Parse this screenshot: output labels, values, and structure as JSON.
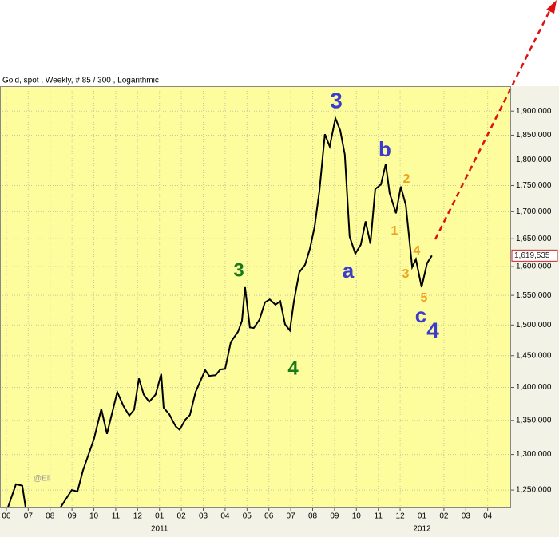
{
  "chart_data": {
    "type": "line",
    "title": "Gold, spot , Weekly, # 85 / 300 , Logarithmic",
    "log_scale": true,
    "grid": true,
    "x": [
      6.0,
      6.44,
      6.73,
      6.91,
      8.34,
      8.99,
      9.25,
      9.5,
      10.01,
      10.34,
      10.6,
      11.07,
      11.36,
      11.62,
      11.84,
      12.06,
      12.28,
      12.53,
      12.82,
      13.08,
      13.19,
      13.45,
      13.74,
      13.92,
      14.18,
      14.39,
      14.65,
      15.09,
      15.27,
      15.56,
      15.78,
      16.0,
      16.26,
      16.59,
      16.77,
      16.91,
      17.13,
      17.31,
      17.57,
      17.82,
      18.04,
      18.3,
      18.52,
      18.74,
      18.96,
      19.14,
      19.39,
      19.65,
      19.87,
      20.09,
      20.31,
      20.56,
      20.78,
      21.04,
      21.26,
      21.47,
      21.69,
      21.95,
      22.2,
      22.42,
      22.64,
      22.86,
      23.12,
      23.34,
      23.52,
      23.81,
      24.03,
      24.26,
      24.55,
      24.72,
      24.98,
      25.23,
      25.45
    ],
    "series": [
      {
        "name": "Gold, spot",
        "color": "#000000",
        "values": [
          1220000,
          1258000,
          1256000,
          1220000,
          1220000,
          1250000,
          1248000,
          1277000,
          1323000,
          1367000,
          1330000,
          1393000,
          1371000,
          1357000,
          1366000,
          1414000,
          1389000,
          1378000,
          1389000,
          1421000,
          1369000,
          1359000,
          1341000,
          1336000,
          1351000,
          1358000,
          1393000,
          1427000,
          1418000,
          1419000,
          1428000,
          1429000,
          1472000,
          1489000,
          1507000,
          1564000,
          1496000,
          1495000,
          1509000,
          1538000,
          1543000,
          1534000,
          1540000,
          1501000,
          1491000,
          1539000,
          1590000,
          1603000,
          1631000,
          1672000,
          1740000,
          1852000,
          1827000,
          1885000,
          1860000,
          1811000,
          1654000,
          1623000,
          1639000,
          1682000,
          1641000,
          1743000,
          1752000,
          1792000,
          1735000,
          1697000,
          1748000,
          1712000,
          1599000,
          1613000,
          1564000,
          1606000,
          1619535
        ]
      }
    ],
    "last_value_label": "1,619,535",
    "xlim": [
      5.71,
      29.07
    ],
    "xticks": [
      {
        "value": 6,
        "label": "06"
      },
      {
        "value": 7,
        "label": "07"
      },
      {
        "value": 8,
        "label": "08"
      },
      {
        "value": 9,
        "label": "09"
      },
      10,
      11,
      12,
      {
        "value": 13,
        "label": "01"
      },
      {
        "value": 14,
        "label": "02"
      },
      {
        "value": 15,
        "label": "03"
      },
      {
        "value": 16,
        "label": "04"
      },
      {
        "value": 17,
        "label": "05"
      },
      {
        "value": 18,
        "label": "06"
      },
      {
        "value": 19,
        "label": "07"
      },
      {
        "value": 20,
        "label": "08"
      },
      {
        "value": 21,
        "label": "09"
      },
      {
        "value": 22,
        "label": "10"
      },
      {
        "value": 23,
        "label": "11"
      },
      {
        "value": 24,
        "label": "12"
      },
      {
        "value": 25,
        "label": "01"
      },
      {
        "value": 26,
        "label": "02"
      },
      {
        "value": 27,
        "label": "03"
      },
      {
        "value": 28,
        "label": "04"
      }
    ],
    "x_year_labels": [
      {
        "value": 13,
        "label": "2011"
      },
      {
        "value": 25,
        "label": "2012"
      }
    ],
    "ylim": [
      1225000,
      1953000
    ],
    "yticks": [
      {
        "value": 1250000,
        "label": "1,250,000"
      },
      {
        "value": 1300000,
        "label": "1,300,000"
      },
      {
        "value": 1350000,
        "label": "1,350,000"
      },
      {
        "value": 1400000,
        "label": "1,400,000"
      },
      {
        "value": 1450000,
        "label": "1,450,000"
      },
      {
        "value": 1500000,
        "label": "1,500,000"
      },
      {
        "value": 1550000,
        "label": "1,550,000"
      },
      {
        "value": 1600000,
        "label": "1,600,000"
      },
      {
        "value": 1650000,
        "label": "1,650,000"
      },
      {
        "value": 1700000,
        "label": "1,700,000"
      },
      {
        "value": 1750000,
        "label": "1,750,000"
      },
      {
        "value": 1800000,
        "label": "1,800,000"
      },
      {
        "value": 1850000,
        "label": "1,850,000"
      },
      {
        "value": 1900000,
        "label": "1,900,000"
      }
    ],
    "watermark": "@Ell",
    "annotations": [
      {
        "text": "3",
        "color": "#1a7a1a"
      },
      {
        "text": "4",
        "color": "#1a7a1a"
      },
      {
        "text": "3",
        "color": "#3b3bcc"
      },
      {
        "text": "a",
        "color": "#3b3bcc"
      },
      {
        "text": "b",
        "color": "#3b3bcc"
      },
      {
        "text": "c",
        "color": "#3b3bcc"
      },
      {
        "text": "4",
        "color": "#3b3bcc"
      },
      {
        "text": "1",
        "color": "#f0a020"
      },
      {
        "text": "2",
        "color": "#f0a020"
      },
      {
        "text": "3",
        "color": "#f0a020"
      },
      {
        "text": "4",
        "color": "#f0a020"
      },
      {
        "text": "5",
        "color": "#f0a020"
      }
    ]
  }
}
